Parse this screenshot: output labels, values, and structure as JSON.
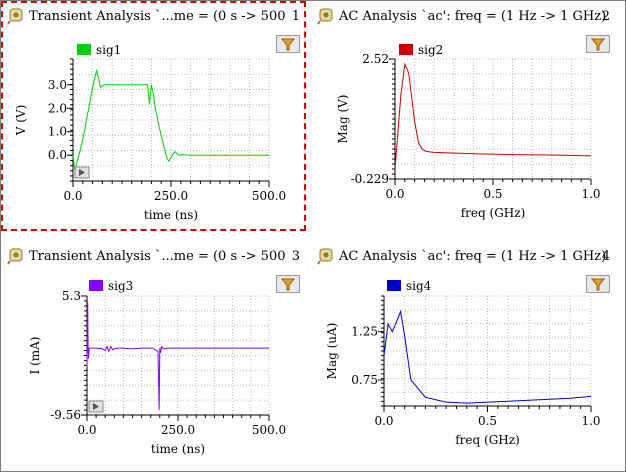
{
  "panels": [
    {
      "title": "Transient Analysis `...me = (0 s -> 500",
      "number": "1",
      "signal": "sig1",
      "color": "#00cc00",
      "selected": true
    },
    {
      "title": "AC Analysis `ac': freq = (1 Hz -> 1 GHz)",
      "number": "2",
      "signal": "sig2",
      "color": "#cc0000",
      "selected": false
    },
    {
      "title": "Transient Analysis `...me = (0 s -> 500",
      "number": "3",
      "signal": "sig3",
      "color": "#8800ff",
      "selected": false
    },
    {
      "title": "AC Analysis `ac': freq = (1 Hz -> 1 GHz)",
      "number": "4",
      "signal": "sig4",
      "color": "#0000cc",
      "selected": false
    }
  ],
  "chart_data": [
    {
      "type": "line",
      "title": "",
      "xlabel": "time (ns)",
      "ylabel": "V (V)",
      "xlim": [
        0,
        500
      ],
      "ylim": [
        -1.1,
        4.1
      ],
      "xticks": [
        "0.0",
        "250.0",
        "500.0"
      ],
      "yticks": [
        "0.0",
        "1.0",
        "2.0",
        "3.0"
      ],
      "grid": true,
      "series": [
        {
          "name": "sig1",
          "color": "#00cc00",
          "x": [
            0,
            5,
            10,
            15,
            20,
            30,
            40,
            50,
            60,
            65,
            70,
            80,
            100,
            150,
            190,
            195,
            200,
            205,
            210,
            220,
            230,
            240,
            245,
            250,
            255,
            260,
            270,
            280,
            300,
            400,
            500
          ],
          "y": [
            0.0,
            -0.7,
            -0.3,
            0.0,
            0.3,
            1.1,
            2.0,
            2.9,
            3.6,
            3.3,
            2.9,
            3.0,
            3.0,
            3.0,
            3.0,
            2.2,
            3.0,
            2.6,
            2.0,
            1.2,
            0.5,
            -0.15,
            -0.25,
            -0.1,
            0.05,
            0.15,
            0.0,
            0.02,
            0.0,
            0.0,
            0.0
          ]
        }
      ]
    },
    {
      "type": "line",
      "title": "",
      "xlabel": "freq (GHz)",
      "ylabel": "Mag (V)",
      "xlim": [
        0,
        1.0
      ],
      "ylim": [
        -0.229,
        2.52
      ],
      "xticks": [
        "0.0",
        "0.5",
        "1.0"
      ],
      "yticks": [
        "-0.229",
        "2.52"
      ],
      "grid": true,
      "series": [
        {
          "name": "sig2",
          "color": "#cc0000",
          "x": [
            0.0,
            0.03,
            0.05,
            0.07,
            0.1,
            0.12,
            0.14,
            0.16,
            0.2,
            0.4,
            0.6,
            0.8,
            1.0
          ],
          "y": [
            0.0,
            1.7,
            2.4,
            2.2,
            1.1,
            0.6,
            0.45,
            0.4,
            0.38,
            0.35,
            0.33,
            0.32,
            0.3
          ]
        }
      ]
    },
    {
      "type": "line",
      "title": "",
      "xlabel": "time (ns)",
      "ylabel": "I (mA)",
      "xlim": [
        0,
        500
      ],
      "ylim": [
        -9.56,
        5.3
      ],
      "xticks": [
        "0.0",
        "250.0",
        "500.0"
      ],
      "yticks": [
        "-9.56",
        "5.3"
      ],
      "grid": true,
      "series": [
        {
          "name": "sig3",
          "color": "#8800ff",
          "x": [
            0,
            2,
            3,
            4,
            6,
            10,
            20,
            40,
            50,
            55,
            60,
            65,
            70,
            80,
            100,
            120,
            150,
            180,
            195,
            198,
            200,
            202,
            205,
            210,
            220,
            250,
            300,
            400,
            500
          ],
          "y": [
            -3.5,
            4.5,
            -1.0,
            -2.5,
            -1.2,
            -1.2,
            -1.2,
            -1.25,
            -1.5,
            -1.0,
            -1.6,
            -1.0,
            -1.4,
            -1.2,
            -1.2,
            -1.3,
            -1.2,
            -1.2,
            -1.6,
            -8.9,
            -1.2,
            -1.8,
            -1.0,
            -1.3,
            -1.2,
            -1.2,
            -1.2,
            -1.2,
            -1.2
          ]
        }
      ]
    },
    {
      "type": "line",
      "title": "",
      "xlabel": "freq (GHz)",
      "ylabel": "Mag (uA)",
      "xlim": [
        0,
        1.0
      ],
      "ylim": [
        0.48,
        1.62
      ],
      "xticks": [
        "0.0",
        "0.5",
        "1.0"
      ],
      "yticks": [
        "0.75",
        "1.25"
      ],
      "grid": true,
      "series": [
        {
          "name": "sig4",
          "color": "#0000cc",
          "x": [
            0.0,
            0.02,
            0.04,
            0.06,
            0.08,
            0.1,
            0.13,
            0.2,
            0.3,
            0.4,
            0.5,
            0.6,
            0.7,
            0.8,
            0.9,
            1.0
          ],
          "y": [
            1.0,
            1.33,
            1.25,
            1.35,
            1.46,
            1.2,
            0.75,
            0.57,
            0.52,
            0.51,
            0.52,
            0.53,
            0.54,
            0.55,
            0.56,
            0.58
          ]
        }
      ]
    }
  ]
}
